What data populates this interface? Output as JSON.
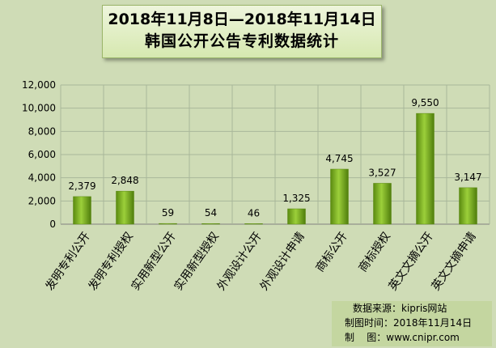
{
  "chart_data": {
    "type": "bar",
    "title_line1": "2018年11月8日—2018年11月14日",
    "title_line2": "韩国公开公告专利数据统计",
    "categories": [
      "发明专利公开",
      "发明专利授权",
      "实用新型公开",
      "实用新型授权",
      "外观设计公开",
      "外观设计申请",
      "商标公开",
      "商标授权",
      "英文文摘公开",
      "英文文摘申请"
    ],
    "values": [
      2379,
      2848,
      59,
      54,
      46,
      1325,
      4745,
      3527,
      9550,
      3147
    ],
    "value_labels": [
      "2,379",
      "2,848",
      "59",
      "54",
      "46",
      "1,325",
      "4,745",
      "3,527",
      "9,550",
      "3,147"
    ],
    "ylim": [
      0,
      12000
    ],
    "yticks": [
      0,
      2000,
      4000,
      6000,
      8000,
      10000,
      12000
    ],
    "ytick_labels": [
      "0",
      "2,000",
      "4,000",
      "6,000",
      "8,000",
      "10,000",
      "12,000"
    ],
    "grid": true,
    "bar_color": "#7eb31f"
  },
  "credit": {
    "source": "数据来源：kipris网站",
    "date": "制图时间：2018年11月14日",
    "maker_label": "制    图：",
    "maker_value": "www.cnipr.com"
  }
}
